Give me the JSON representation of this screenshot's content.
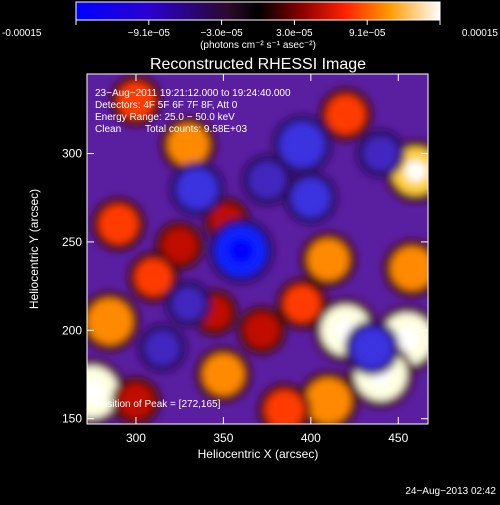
{
  "colorbar": {
    "tick_labels": [
      "-0.00015",
      "−9.1e−05",
      "−3.0e−05",
      "3.0e−05",
      "9.1e−05",
      "0.00015"
    ],
    "units": "(photons cm⁻² s⁻¹ asec⁻²)",
    "range": [
      -0.00015,
      0.00015
    ],
    "colormap": "blue-purple-red-orange-yellow-white"
  },
  "chart_data": {
    "type": "heatmap",
    "title": "Reconstructed RHESSI Image",
    "xlabel": "Heliocentric X (arcsec)",
    "ylabel": "Heliocentric Y (arcsec)",
    "xlim": [
      272,
      467
    ],
    "ylim": [
      147,
      345
    ],
    "x_ticks": [
      300,
      350,
      400,
      450
    ],
    "y_ticks": [
      150,
      200,
      250,
      300
    ],
    "annotations": {
      "time_range": "23−Aug−2011 19:21:12.000 to 19:24:40.000",
      "detectors": "Detectors: 4F 5F 6F 7F 8F, Att 0",
      "energy": "Energy Range: 25.0 − 50.0 keV",
      "clean": "Clean",
      "total_counts": "Total counts: 9.58E+03",
      "peak": "Position of Peak = [272,165]"
    },
    "footer_date": "24−Aug−2013 02:42",
    "features": [
      {
        "kind": "positive",
        "x": 275,
        "y": 165,
        "value": 0.00015
      },
      {
        "kind": "positive",
        "x": 285,
        "y": 205,
        "value": 0.00012
      },
      {
        "kind": "positive",
        "x": 290,
        "y": 260,
        "value": 9e-05
      },
      {
        "kind": "positive",
        "x": 330,
        "y": 305,
        "value": 0.0001
      },
      {
        "kind": "positive",
        "x": 352,
        "y": 262,
        "value": 6e-05
      },
      {
        "kind": "positive",
        "x": 325,
        "y": 248,
        "value": 7e-05
      },
      {
        "kind": "positive",
        "x": 310,
        "y": 230,
        "value": 8e-05
      },
      {
        "kind": "positive",
        "x": 300,
        "y": 160,
        "value": 7e-05
      },
      {
        "kind": "positive",
        "x": 350,
        "y": 175,
        "value": 0.0001
      },
      {
        "kind": "positive",
        "x": 372,
        "y": 200,
        "value": 7e-05
      },
      {
        "kind": "positive",
        "x": 345,
        "y": 210,
        "value": 6e-05
      },
      {
        "kind": "positive",
        "x": 420,
        "y": 322,
        "value": 9e-05
      },
      {
        "kind": "positive",
        "x": 460,
        "y": 290,
        "value": 0.00013
      },
      {
        "kind": "positive",
        "x": 458,
        "y": 235,
        "value": 0.00011
      },
      {
        "kind": "positive",
        "x": 410,
        "y": 240,
        "value": 0.0001
      },
      {
        "kind": "positive",
        "x": 395,
        "y": 215,
        "value": 8e-05
      },
      {
        "kind": "positive",
        "x": 420,
        "y": 200,
        "value": 0.00014
      },
      {
        "kind": "positive",
        "x": 455,
        "y": 195,
        "value": 0.00015
      },
      {
        "kind": "positive",
        "x": 440,
        "y": 175,
        "value": 0.00015
      },
      {
        "kind": "positive",
        "x": 410,
        "y": 160,
        "value": 0.00012
      },
      {
        "kind": "positive",
        "x": 385,
        "y": 155,
        "value": 9e-05
      },
      {
        "kind": "positive",
        "x": 300,
        "y": 330,
        "value": 8e-05
      },
      {
        "kind": "negative",
        "x": 360,
        "y": 245,
        "value": -0.00015
      },
      {
        "kind": "negative",
        "x": 335,
        "y": 280,
        "value": -0.0001
      },
      {
        "kind": "negative",
        "x": 395,
        "y": 305,
        "value": -0.00012
      },
      {
        "kind": "negative",
        "x": 400,
        "y": 275,
        "value": -9e-05
      },
      {
        "kind": "negative",
        "x": 375,
        "y": 285,
        "value": -8e-05
      },
      {
        "kind": "negative",
        "x": 435,
        "y": 190,
        "value": -0.0001
      },
      {
        "kind": "negative",
        "x": 315,
        "y": 190,
        "value": -7e-05
      },
      {
        "kind": "negative",
        "x": 330,
        "y": 215,
        "value": -6e-05
      },
      {
        "kind": "negative",
        "x": 440,
        "y": 300,
        "value": -7e-05
      }
    ]
  }
}
